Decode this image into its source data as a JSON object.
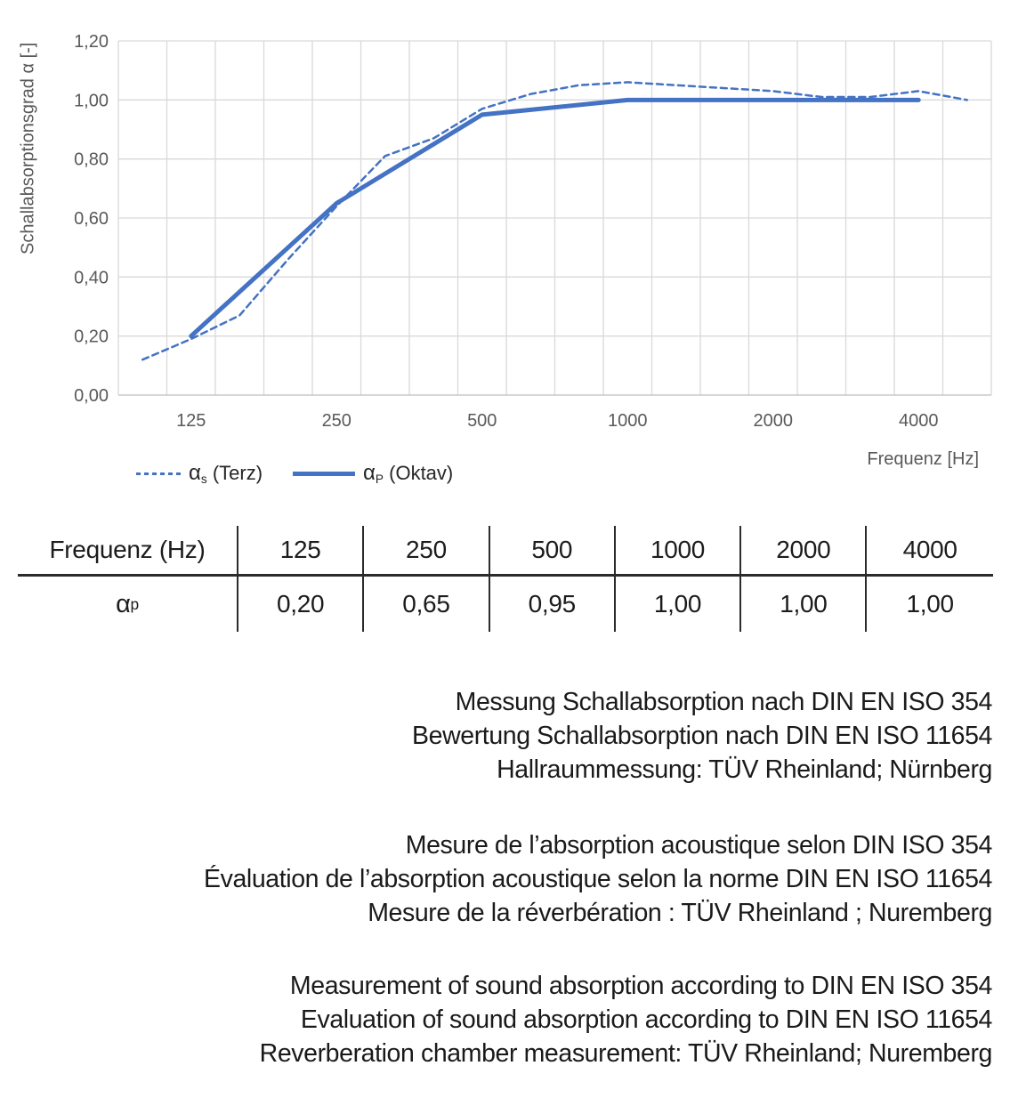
{
  "chart_data": {
    "type": "line",
    "title": "",
    "x_axis_title": "Frequenz [Hz]",
    "y_axis_title": "Schallabsorptionsgrad α [-]",
    "ylim": [
      0,
      1.2
    ],
    "grid": true,
    "legend_position": "bottom-left",
    "categories": [
      100,
      125,
      160,
      200,
      250,
      315,
      400,
      500,
      630,
      800,
      1000,
      1250,
      1600,
      2000,
      2500,
      3150,
      4000,
      5000
    ],
    "y_ticks": [
      {
        "value": 0.0,
        "label": "0,00"
      },
      {
        "value": 0.2,
        "label": "0,20"
      },
      {
        "value": 0.4,
        "label": "0,40"
      },
      {
        "value": 0.6,
        "label": "0,60"
      },
      {
        "value": 0.8,
        "label": "0,80"
      },
      {
        "value": 1.0,
        "label": "1,00"
      },
      {
        "value": 1.2,
        "label": "1,20"
      }
    ],
    "x_ticks": [
      {
        "freq": 125,
        "label": "125"
      },
      {
        "freq": 250,
        "label": "250"
      },
      {
        "freq": 500,
        "label": "500"
      },
      {
        "freq": 1000,
        "label": "1000"
      },
      {
        "freq": 2000,
        "label": "2000"
      },
      {
        "freq": 4000,
        "label": "4000"
      }
    ],
    "series": [
      {
        "name": "αs (Terz)",
        "style": "dashed",
        "x": [
          100,
          125,
          160,
          200,
          250,
          315,
          400,
          500,
          630,
          800,
          1000,
          1250,
          1600,
          2000,
          2500,
          3150,
          4000,
          5000
        ],
        "values": [
          0.12,
          0.19,
          0.27,
          0.46,
          0.64,
          0.81,
          0.87,
          0.97,
          1.02,
          1.05,
          1.06,
          1.05,
          1.04,
          1.03,
          1.01,
          1.01,
          1.03,
          1.0
        ]
      },
      {
        "name": "αP (Oktav)",
        "style": "solid",
        "x": [
          125,
          250,
          500,
          1000,
          2000,
          4000
        ],
        "values": [
          0.2,
          0.65,
          0.95,
          1.0,
          1.0,
          1.0
        ]
      }
    ],
    "colors": {
      "line": "#4472C4",
      "grid": "#D9D9D9",
      "axis": "#BFBFBF",
      "tick_text": "#595959"
    }
  },
  "chart": {
    "y_axis_title": "Schallabsorptionsgrad α [-]",
    "x_axis_title": "Frequenz [Hz]",
    "legend": [
      {
        "alpha": "α",
        "sub": "s",
        "rest": "(Terz)",
        "style": "dashed"
      },
      {
        "alpha": "α",
        "sub": "P",
        "rest": "(Oktav)",
        "style": "solid"
      }
    ]
  },
  "table": {
    "header_label": "Frequenz (Hz)",
    "header_values": [
      "125",
      "250",
      "500",
      "1000",
      "2000",
      "4000"
    ],
    "row_label_alpha": "α",
    "row_label_sub": "p",
    "row_values": [
      "0,20",
      "0,65",
      "0,95",
      "1,00",
      "1,00",
      "1,00"
    ]
  },
  "notes": {
    "de": [
      "Messung Schallabsorption nach DIN EN ISO 354",
      "Bewertung Schallabsorption nach DIN EN ISO 11654",
      "Hallraummessung: TÜV Rheinland; Nürnberg"
    ],
    "fr": [
      "Mesure de l’absorption acoustique selon DIN ISO 354",
      "Évaluation de l’absorption acoustique selon la norme DIN EN ISO 11654",
      "Mesure de la réverbération : TÜV Rheinland ; Nuremberg"
    ],
    "en": [
      "Measurement of sound absorption according to DIN EN ISO 354",
      "Evaluation of sound absorption according to DIN EN ISO 11654",
      "Reverberation chamber measurement: TÜV Rheinland; Nuremberg"
    ]
  }
}
